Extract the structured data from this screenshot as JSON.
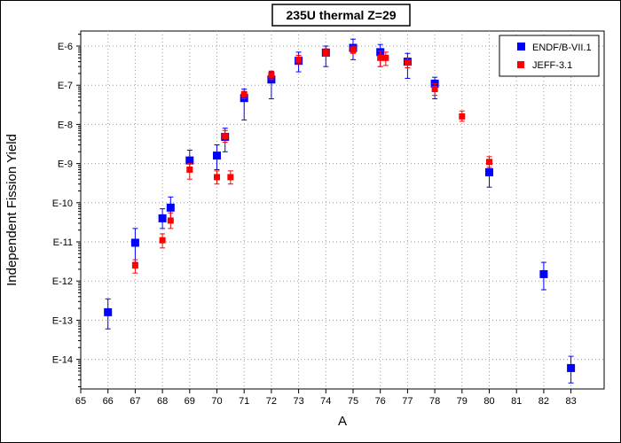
{
  "chart_data": {
    "type": "scatter",
    "title": "235U thermal Z=29",
    "xlabel": "A",
    "ylabel": "Independent Fission Yield",
    "x_scale": "broken-linear",
    "y_scale": "log",
    "x_ticks": [
      "65",
      "66",
      "67",
      "68",
      "69",
      "70",
      "71",
      "72",
      "73",
      "74",
      "75",
      "76",
      "77",
      "78",
      "79",
      "80",
      "81",
      "82",
      "83"
    ],
    "y_ticks": [
      "E-6",
      "E-7",
      "E-8",
      "E-9",
      "E-10",
      "E-11",
      "E-12",
      "E-13",
      "E-14"
    ],
    "ylim": [
      1e-15,
      1e-05
    ],
    "grid": true,
    "legend_position": "top-right",
    "series": [
      {
        "name": "ENDF/B-VII.1",
        "color": "#0000ff",
        "marker": "square",
        "points": [
          {
            "x": 66,
            "y": 1.6e-13,
            "ylo": 6e-14,
            "yhi": 3.5e-13
          },
          {
            "x": 67,
            "y": 9.5e-12,
            "ylo": 3e-12,
            "yhi": 2.2e-11
          },
          {
            "x": 68,
            "y": 4e-11,
            "ylo": 2.2e-11,
            "yhi": 7e-11
          },
          {
            "x": 68.3,
            "y": 7.5e-11,
            "ylo": 4e-11,
            "yhi": 1.4e-10
          },
          {
            "x": 69,
            "y": 1.2e-09,
            "ylo": 7e-10,
            "yhi": 2.2e-09
          },
          {
            "x": 70,
            "y": 1.6e-09,
            "ylo": 7e-10,
            "yhi": 3e-09
          },
          {
            "x": 70.3,
            "y": 4.8e-09,
            "ylo": 2e-09,
            "yhi": 8e-09
          },
          {
            "x": 71,
            "y": 4.7e-08,
            "ylo": 1.3e-08,
            "yhi": 8e-08
          },
          {
            "x": 72,
            "y": 1.4e-07,
            "ylo": 4.5e-08,
            "yhi": 2.2e-07
          },
          {
            "x": 73,
            "y": 4.2e-07,
            "ylo": 2.2e-07,
            "yhi": 7e-07
          },
          {
            "x": 74,
            "y": 6.8e-07,
            "ylo": 3e-07,
            "yhi": 1e-06
          },
          {
            "x": 75,
            "y": 9e-07,
            "ylo": 4.5e-07,
            "yhi": 1.5e-06
          },
          {
            "x": 76,
            "y": 7e-07,
            "ylo": 3e-07,
            "yhi": 1.1e-06
          },
          {
            "x": 77,
            "y": 4e-07,
            "ylo": 1.5e-07,
            "yhi": 6.5e-07
          },
          {
            "x": 78,
            "y": 1.1e-07,
            "ylo": 4.5e-08,
            "yhi": 1.6e-07
          },
          {
            "x": 80,
            "y": 6e-10,
            "ylo": 2.5e-10,
            "yhi": 1e-09
          },
          {
            "x": 82,
            "y": 1.5e-12,
            "ylo": 6e-13,
            "yhi": 3e-12
          },
          {
            "x": 83,
            "y": 6e-15,
            "ylo": 2.5e-15,
            "yhi": 1.2e-14
          }
        ]
      },
      {
        "name": "JEFF-3.1",
        "color": "#ff0000",
        "marker": "square",
        "points": [
          {
            "x": 67,
            "y": 2.5e-12,
            "ylo": 1.6e-12,
            "yhi": 3.5e-12
          },
          {
            "x": 68,
            "y": 1.1e-11,
            "ylo": 7e-12,
            "yhi": 1.6e-11
          },
          {
            "x": 68.3,
            "y": 3.5e-11,
            "ylo": 2.2e-11,
            "yhi": 5.5e-11
          },
          {
            "x": 69,
            "y": 7e-10,
            "ylo": 4e-10,
            "yhi": 1e-09
          },
          {
            "x": 70,
            "y": 4.5e-10,
            "ylo": 3e-10,
            "yhi": 6.5e-10
          },
          {
            "x": 70.3,
            "y": 5e-09,
            "ylo": 3.5e-09,
            "yhi": 7e-09
          },
          {
            "x": 70.5,
            "y": 4.5e-10,
            "ylo": 3e-10,
            "yhi": 6.5e-10
          },
          {
            "x": 71,
            "y": 5.8e-08,
            "ylo": 4.5e-08,
            "yhi": 7e-08
          },
          {
            "x": 72,
            "y": 1.8e-07,
            "ylo": 1.4e-07,
            "yhi": 2.3e-07
          },
          {
            "x": 73,
            "y": 4.5e-07,
            "ylo": 3.5e-07,
            "yhi": 5.8e-07
          },
          {
            "x": 74,
            "y": 6.8e-07,
            "ylo": 5.5e-07,
            "yhi": 8.5e-07
          },
          {
            "x": 75,
            "y": 8e-07,
            "ylo": 6.5e-07,
            "yhi": 1e-06
          },
          {
            "x": 76,
            "y": 5e-07,
            "ylo": 3e-07,
            "yhi": 7.5e-07
          },
          {
            "x": 76.2,
            "y": 5e-07,
            "ylo": 3.2e-07,
            "yhi": 7e-07
          },
          {
            "x": 77,
            "y": 3.8e-07,
            "ylo": 2.8e-07,
            "yhi": 5e-07
          },
          {
            "x": 78,
            "y": 8e-08,
            "ylo": 5.5e-08,
            "yhi": 1.1e-07
          },
          {
            "x": 79,
            "y": 1.6e-08,
            "ylo": 1.2e-08,
            "yhi": 2.2e-08
          },
          {
            "x": 80,
            "y": 1.1e-09,
            "ylo": 8e-10,
            "yhi": 1.5e-09
          }
        ]
      }
    ]
  }
}
